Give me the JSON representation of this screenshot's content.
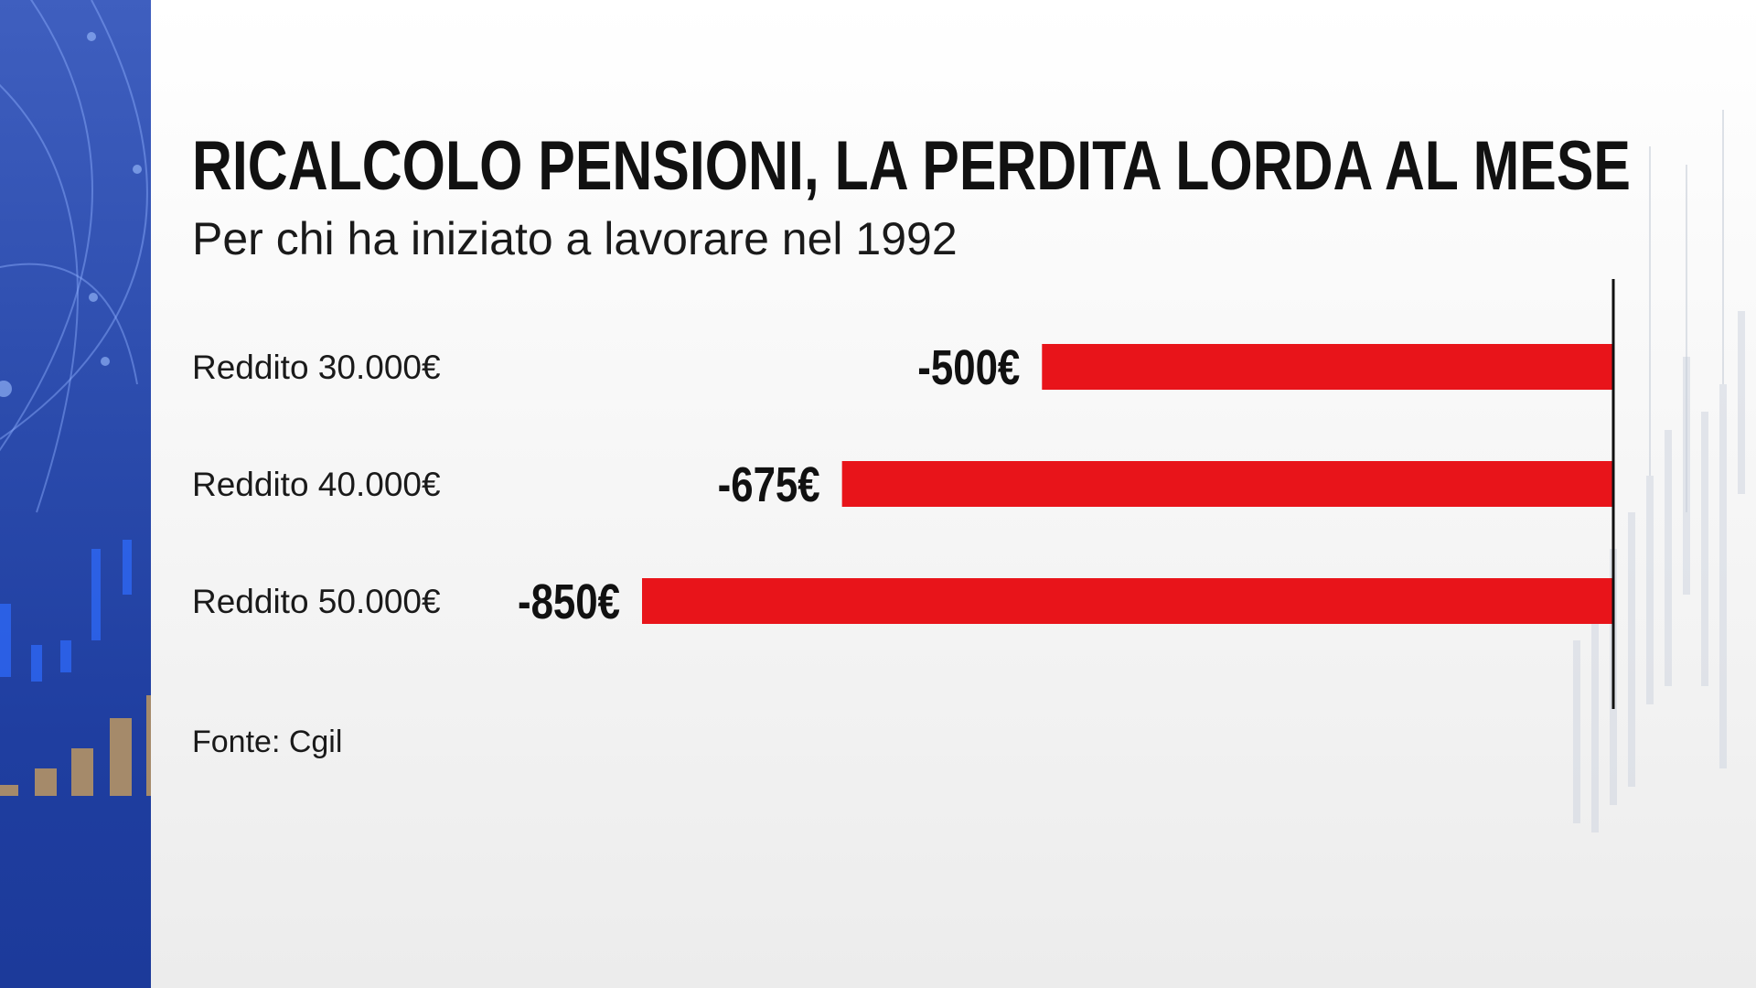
{
  "chart_data": {
    "type": "bar",
    "orientation": "horizontal",
    "title": "RICALCOLO PENSIONI, LA PERDITA LORDA AL MESE",
    "subtitle": "Per chi ha iniziato a lavorare nel 1992",
    "categories": [
      "Reddito 30.000€",
      "Reddito 40.000€",
      "Reddito 50.000€"
    ],
    "values": [
      -500,
      -675,
      -850
    ],
    "value_labels": [
      "-500€",
      "-675€",
      "-850€"
    ],
    "xlim": [
      -850,
      0
    ],
    "grid": false,
    "legend": "none",
    "bar_color": "#e8141a"
  },
  "source": "Fonte: Cgil",
  "colors": {
    "side_panel": "#2a4aab",
    "bar": "#e8141a",
    "text": "#111111"
  }
}
